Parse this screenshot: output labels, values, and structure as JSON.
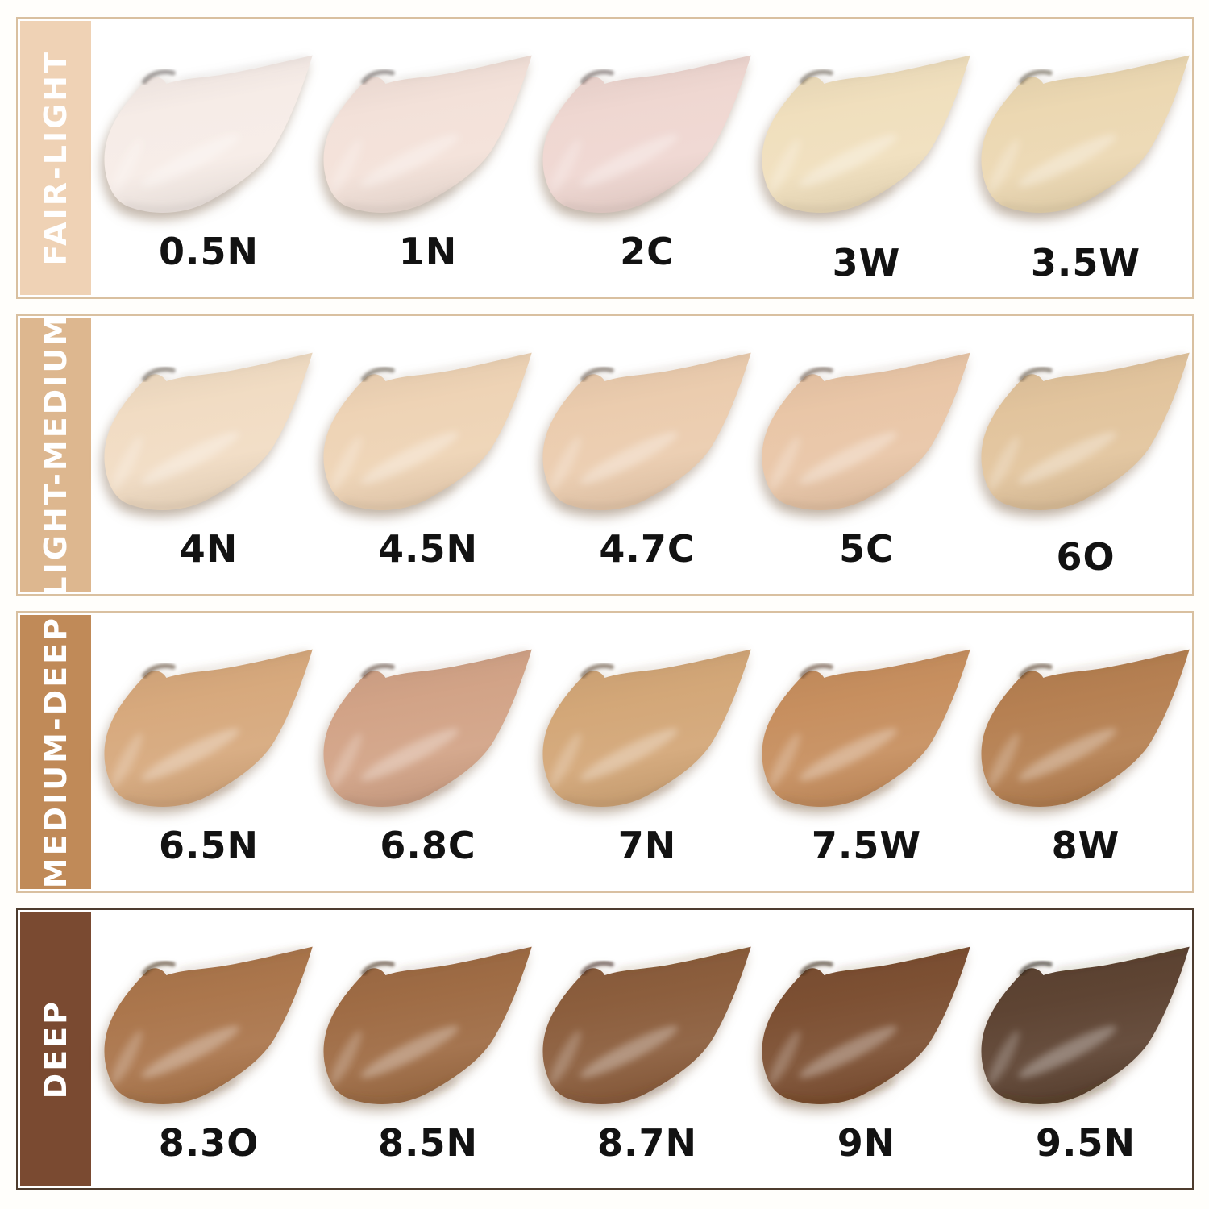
{
  "frame": {
    "background": "#fffefb",
    "border_color": "#d9c0a0",
    "deep_row_border_color": "#4e3c2e",
    "band_label_color": "#ffffff",
    "shade_label_color": "#121212"
  },
  "chart_data": {
    "type": "table",
    "title": "",
    "description": "Foundation shade swatch chart: smear swatches grouped into four depth categories",
    "categories": [
      "FAIR-LIGHT",
      "LIGHT-MEDIUM",
      "MEDIUM-DEEP",
      "DEEP"
    ],
    "legend_position": "left-bands",
    "rows": [
      {
        "category": "FAIR-LIGHT",
        "band_color": "#efd2b5",
        "shades": [
          {
            "label": "0.5N",
            "color": "#f6ece7"
          },
          {
            "label": "1N",
            "color": "#f3e1d9"
          },
          {
            "label": "2C",
            "color": "#efd7d1"
          },
          {
            "label": "3W",
            "color": "#f0dfbd"
          },
          {
            "label": "3.5W",
            "color": "#ecd8b2"
          }
        ]
      },
      {
        "category": "LIGHT-MEDIUM",
        "band_color": "#ddb78f",
        "shades": [
          {
            "label": "4N",
            "color": "#f1dcc3"
          },
          {
            "label": "4.5N",
            "color": "#eed3b5"
          },
          {
            "label": "4.7C",
            "color": "#ebccae"
          },
          {
            "label": "5C",
            "color": "#e9c6a7"
          },
          {
            "label": "6O",
            "color": "#e2c49d"
          }
        ]
      },
      {
        "category": "MEDIUM-DEEP",
        "band_color": "#c08a58",
        "shades": [
          {
            "label": "6.5N",
            "color": "#d7a97d"
          },
          {
            "label": "6.8C",
            "color": "#d2a387"
          },
          {
            "label": "7N",
            "color": "#d3a778"
          },
          {
            "label": "7.5W",
            "color": "#c78f5f"
          },
          {
            "label": "8W",
            "color": "#b68052"
          }
        ]
      },
      {
        "category": "DEEP",
        "band_color": "#7a4a31",
        "shades": [
          {
            "label": "8.3O",
            "color": "#ab764c"
          },
          {
            "label": "8.5N",
            "color": "#9f6c45"
          },
          {
            "label": "8.7N",
            "color": "#8c5e3d"
          },
          {
            "label": "9N",
            "color": "#7d5033"
          },
          {
            "label": "9.5N",
            "color": "#5e4433"
          }
        ]
      }
    ]
  }
}
